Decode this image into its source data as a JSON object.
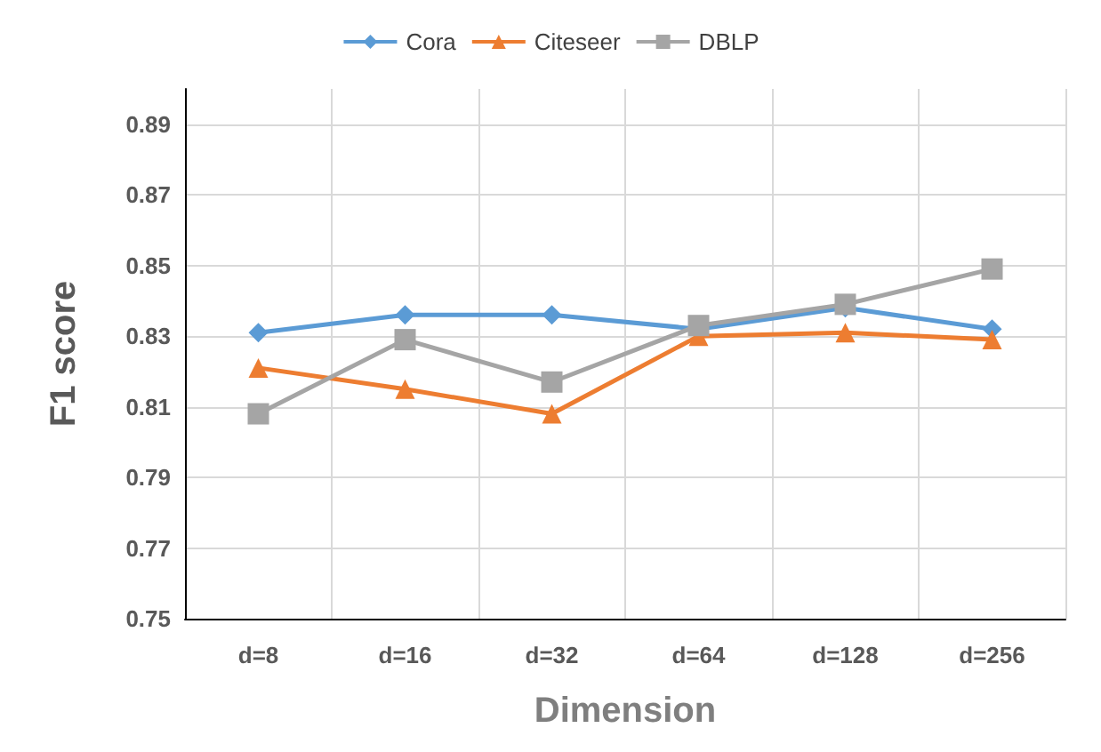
{
  "chart_data": {
    "type": "line",
    "xlabel": "Dimension",
    "ylabel": "F1 score",
    "categories": [
      "d=8",
      "d=16",
      "d=32",
      "d=64",
      "d=128",
      "d=256"
    ],
    "series": [
      {
        "name": "Cora",
        "color": "#5b9bd5",
        "marker": "diamond",
        "values": [
          0.831,
          0.836,
          0.836,
          0.832,
          0.838,
          0.832
        ]
      },
      {
        "name": "Citeseer",
        "color": "#ed7d31",
        "marker": "triangle",
        "values": [
          0.821,
          0.815,
          0.808,
          0.83,
          0.831,
          0.829
        ]
      },
      {
        "name": "DBLP",
        "color": "#a5a5a5",
        "marker": "square",
        "values": [
          0.808,
          0.829,
          0.817,
          0.833,
          0.839,
          0.849
        ]
      }
    ],
    "ylim": [
      0.75,
      0.9
    ],
    "yticks": [
      0.75,
      0.77,
      0.79,
      0.81,
      0.83,
      0.85,
      0.87,
      0.89
    ],
    "grid": true,
    "legend": "top"
  }
}
